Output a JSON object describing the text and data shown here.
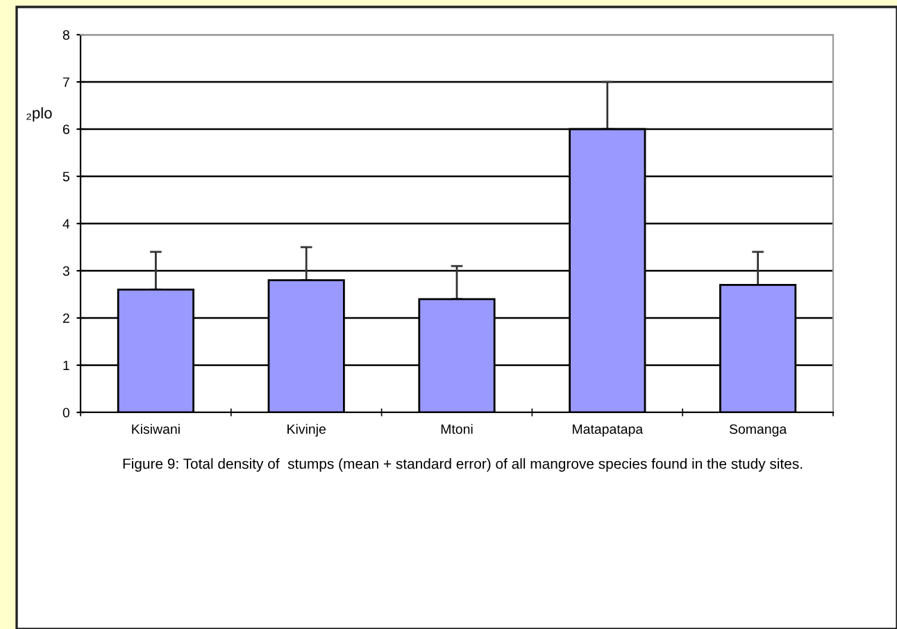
{
  "chart_data": {
    "type": "bar",
    "ylabel": "₂plo",
    "categories": [
      "Kisiwani",
      "Kivinje",
      "Mtoni",
      "Matapatapa",
      "Somanga"
    ],
    "values": [
      2.6,
      2.8,
      2.4,
      6.0,
      2.7
    ],
    "errors": [
      [
        2.6,
        3.4
      ],
      [
        2.8,
        3.5
      ],
      [
        2.4,
        3.1
      ],
      [
        6.0,
        7.0
      ],
      [
        2.7,
        3.4
      ]
    ],
    "color": "#9999ff",
    "ylim": [
      0,
      8
    ],
    "yticks": [
      0,
      1,
      2,
      3,
      4,
      5,
      6,
      7,
      8
    ],
    "grid": "y",
    "legend": false,
    "annotations": [
      "Figure 9: Total density of  stumps (mean + standard error) of all mangrove species found in the study sites."
    ]
  }
}
